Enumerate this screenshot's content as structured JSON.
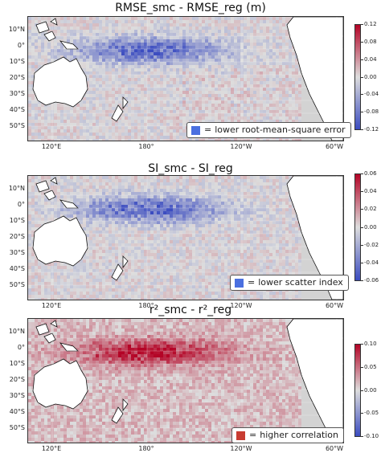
{
  "panels": [
    {
      "title": "RMSE_smc - RMSE_reg (m)",
      "legend_text": "lower root-mean-square error",
      "legend_color": "#4a6fe0",
      "dominant": "blue",
      "colorbar_ticks": [
        "0.12",
        "0.08",
        "0.04",
        "0.00",
        "-0.04",
        "-0.08",
        "-0.12"
      ]
    },
    {
      "title": "SI_smc - SI_reg",
      "legend_text": "lower scatter index",
      "legend_color": "#4a6fe0",
      "dominant": "blue",
      "colorbar_ticks": [
        "0.06",
        "0.04",
        "0.02",
        "0.00",
        "-0.02",
        "-0.04",
        "-0.06"
      ]
    },
    {
      "title": "r²_smc - r²_reg",
      "legend_text": "higher correlation",
      "legend_color": "#c83c32",
      "dominant": "red",
      "colorbar_ticks": [
        "0.10",
        "0.05",
        "0.00",
        "-0.05",
        "-0.10"
      ]
    }
  ],
  "lat_labels": [
    "10°N",
    "0°",
    "10°S",
    "20°S",
    "30°S",
    "40°S",
    "50°S"
  ],
  "lon_labels": [
    "120°E",
    "180°",
    "120°W",
    "60°W"
  ],
  "legend_equals": "=",
  "colormap": {
    "low": "#3b4cc0",
    "mid": "#dddddd",
    "high": "#b40426"
  },
  "land_color": "#ffffff",
  "ocean_background": "#d3d3d3"
}
